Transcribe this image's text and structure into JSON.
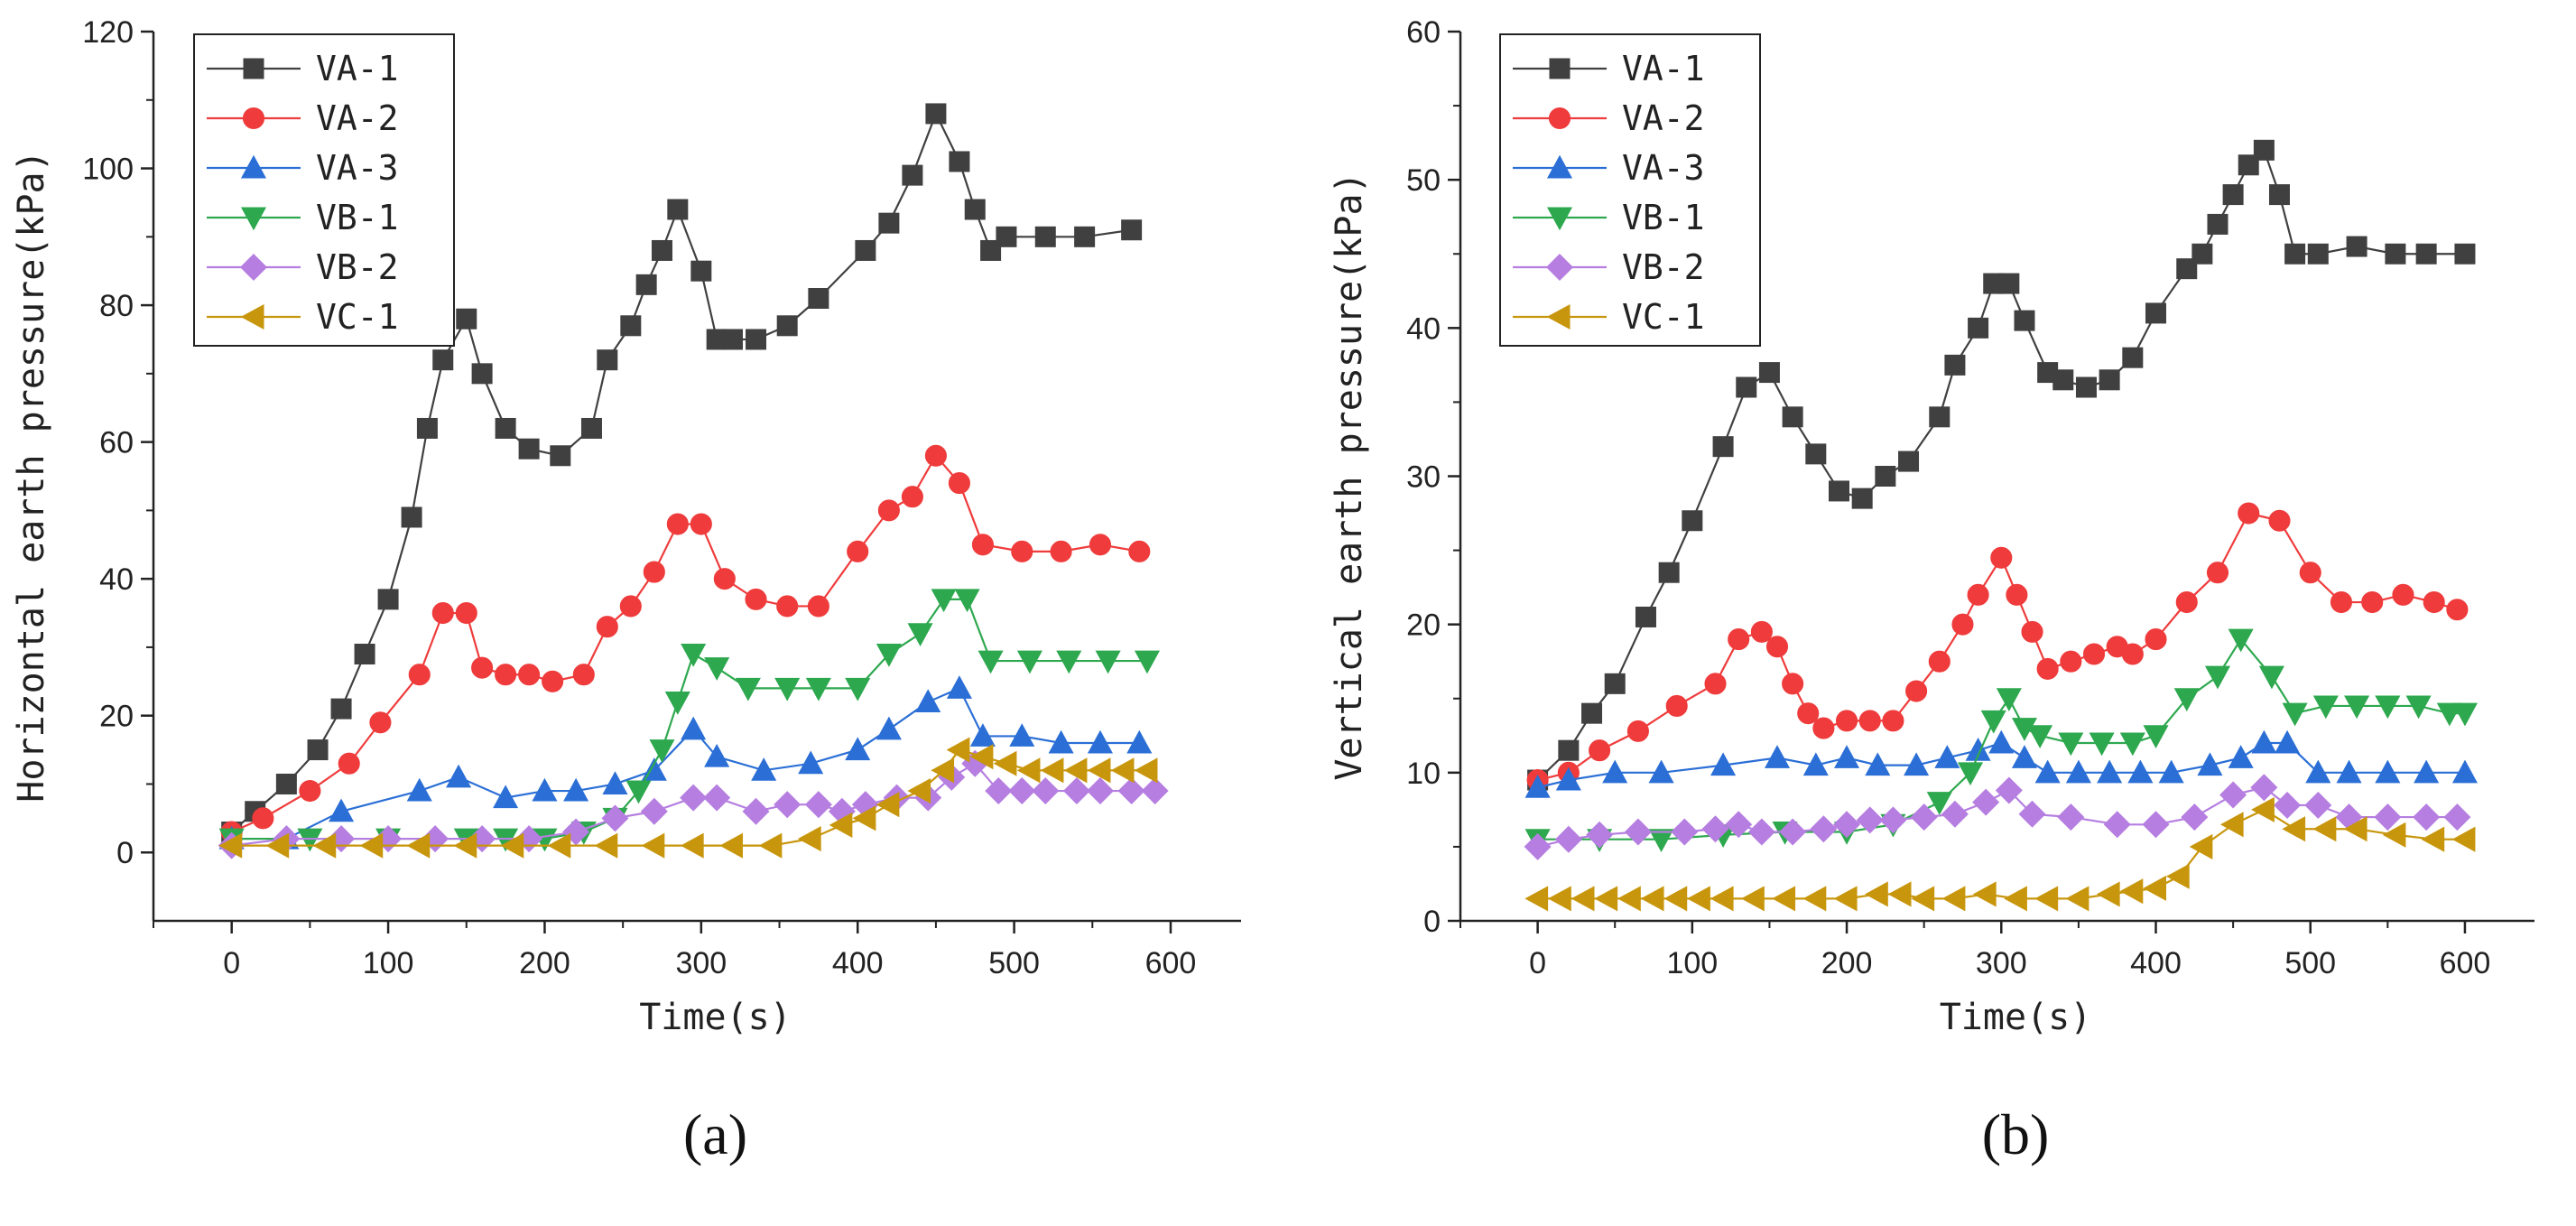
{
  "figure": {
    "panels": [
      "(a)",
      "(b)"
    ]
  },
  "chart_data": [
    {
      "type": "line",
      "panel_label": "(a)",
      "xlabel": "Time(s)",
      "ylabel": "Horizontal earth pressure(kPa)",
      "xlim": [
        -50,
        645
      ],
      "ylim": [
        -10,
        120
      ],
      "xticks": [
        0,
        100,
        200,
        300,
        400,
        500,
        600
      ],
      "yticks": [
        0,
        20,
        40,
        60,
        80,
        100,
        120
      ],
      "legend_position": "top-left",
      "series": [
        {
          "name": "VA-1",
          "color": "#404040",
          "marker": "square",
          "x": [
            0,
            15,
            35,
            55,
            70,
            85,
            100,
            115,
            125,
            135,
            150,
            160,
            175,
            190,
            210,
            230,
            240,
            255,
            265,
            275,
            285,
            300,
            310,
            320,
            335,
            355,
            375,
            405,
            420,
            435,
            450,
            465,
            475,
            485,
            495,
            520,
            545,
            575
          ],
          "y": [
            3,
            6,
            10,
            15,
            21,
            29,
            37,
            49,
            62,
            72,
            78,
            70,
            62,
            59,
            58,
            62,
            72,
            77,
            83,
            88,
            94,
            85,
            75,
            75,
            75,
            77,
            81,
            88,
            92,
            99,
            108,
            101,
            94,
            88,
            90,
            90,
            90,
            91
          ]
        },
        {
          "name": "VA-2",
          "color": "#ef3b3b",
          "marker": "circle",
          "x": [
            0,
            20,
            50,
            75,
            95,
            120,
            135,
            150,
            160,
            175,
            190,
            205,
            225,
            240,
            255,
            270,
            285,
            300,
            315,
            335,
            355,
            375,
            400,
            420,
            435,
            450,
            465,
            480,
            505,
            530,
            555,
            580
          ],
          "y": [
            3,
            5,
            9,
            13,
            19,
            26,
            35,
            35,
            27,
            26,
            26,
            25,
            26,
            33,
            36,
            41,
            48,
            48,
            40,
            37,
            36,
            36,
            44,
            50,
            52,
            58,
            54,
            45,
            44,
            44,
            45,
            44
          ]
        },
        {
          "name": "VA-3",
          "color": "#2b6fd6",
          "marker": "triangle-up",
          "x": [
            0,
            35,
            70,
            120,
            145,
            175,
            200,
            220,
            245,
            270,
            295,
            310,
            340,
            370,
            400,
            420,
            445,
            465,
            480,
            505,
            530,
            555,
            580
          ],
          "y": [
            2,
            2,
            6,
            9,
            11,
            8,
            9,
            9,
            10,
            12,
            18,
            14,
            12,
            13,
            15,
            18,
            22,
            24,
            17,
            17,
            16,
            16,
            16
          ]
        },
        {
          "name": "VB-1",
          "color": "#2ea84f",
          "marker": "triangle-down",
          "x": [
            0,
            50,
            100,
            150,
            175,
            200,
            225,
            245,
            260,
            275,
            285,
            295,
            310,
            330,
            355,
            375,
            400,
            420,
            440,
            455,
            470,
            485,
            510,
            535,
            560,
            585
          ],
          "y": [
            2,
            2,
            2,
            2,
            2,
            2,
            3,
            5,
            9,
            15,
            22,
            29,
            27,
            24,
            24,
            24,
            24,
            29,
            32,
            37,
            37,
            28,
            28,
            28,
            28,
            28
          ]
        },
        {
          "name": "VB-2",
          "color": "#b57ee0",
          "marker": "diamond",
          "x": [
            0,
            35,
            70,
            100,
            130,
            160,
            190,
            220,
            245,
            270,
            295,
            310,
            335,
            355,
            375,
            390,
            405,
            425,
            445,
            460,
            475,
            490,
            505,
            520,
            540,
            555,
            575,
            590
          ],
          "y": [
            1,
            2,
            2,
            2,
            2,
            2,
            2,
            3,
            5,
            6,
            8,
            8,
            6,
            7,
            7,
            6,
            7,
            8,
            8,
            11,
            13,
            9,
            9,
            9,
            9,
            9,
            9,
            9
          ]
        },
        {
          "name": "VC-1",
          "color": "#c8960c",
          "marker": "triangle-left",
          "x": [
            0,
            30,
            60,
            90,
            120,
            150,
            180,
            210,
            240,
            270,
            295,
            320,
            345,
            370,
            390,
            405,
            420,
            440,
            455,
            465,
            480,
            495,
            510,
            525,
            540,
            555,
            570,
            585
          ],
          "y": [
            1,
            1,
            1,
            1,
            1,
            1,
            1,
            1,
            1,
            1,
            1,
            1,
            1,
            2,
            4,
            5,
            7,
            9,
            12,
            15,
            14,
            13,
            12,
            12,
            12,
            12,
            12,
            12
          ]
        }
      ]
    },
    {
      "type": "line",
      "panel_label": "(b)",
      "xlabel": "Time(s)",
      "ylabel": "Vertical earth pressure(kPa)",
      "xlim": [
        -50,
        645
      ],
      "ylim": [
        0,
        60
      ],
      "xticks": [
        0,
        100,
        200,
        300,
        400,
        500,
        600
      ],
      "yticks": [
        0,
        10,
        20,
        30,
        40,
        50,
        60
      ],
      "legend_position": "top-left",
      "series": [
        {
          "name": "VA-1",
          "color": "#404040",
          "marker": "square",
          "x": [
            0,
            20,
            35,
            50,
            70,
            85,
            100,
            120,
            135,
            150,
            165,
            180,
            195,
            210,
            225,
            240,
            260,
            270,
            285,
            295,
            305,
            315,
            330,
            340,
            355,
            370,
            385,
            400,
            420,
            430,
            440,
            450,
            460,
            470,
            480,
            490,
            505,
            530,
            555,
            575,
            600
          ],
          "y": [
            9.5,
            11.5,
            14,
            16,
            20.5,
            23.5,
            27,
            32,
            36,
            37,
            34,
            31.5,
            29,
            28.5,
            30,
            31,
            34,
            37.5,
            40,
            43,
            43,
            40.5,
            37,
            36.5,
            36,
            36.5,
            38,
            41,
            44,
            45,
            47,
            49,
            51,
            52,
            49,
            45,
            45,
            45.5,
            45,
            45,
            45
          ]
        },
        {
          "name": "VA-2",
          "color": "#ef3b3b",
          "marker": "circle",
          "x": [
            0,
            20,
            40,
            65,
            90,
            115,
            130,
            145,
            155,
            165,
            175,
            185,
            200,
            215,
            230,
            245,
            260,
            275,
            285,
            300,
            310,
            320,
            330,
            345,
            360,
            375,
            385,
            400,
            420,
            440,
            460,
            480,
            500,
            520,
            540,
            560,
            580,
            595
          ],
          "y": [
            9.5,
            10,
            11.5,
            12.8,
            14.5,
            16,
            19,
            19.5,
            18.5,
            16,
            14,
            13,
            13.5,
            13.5,
            13.5,
            15.5,
            17.5,
            20,
            22,
            24.5,
            22,
            19.5,
            17,
            17.5,
            18,
            18.5,
            18,
            19,
            21.5,
            23.5,
            27.5,
            27,
            23.5,
            21.5,
            21.5,
            22,
            21.5,
            21
          ]
        },
        {
          "name": "VA-3",
          "color": "#2b6fd6",
          "marker": "triangle-up",
          "x": [
            0,
            20,
            50,
            80,
            120,
            155,
            180,
            200,
            220,
            245,
            265,
            285,
            300,
            315,
            330,
            350,
            370,
            390,
            410,
            435,
            455,
            470,
            485,
            505,
            525,
            550,
            575,
            600
          ],
          "y": [
            9,
            9.5,
            10,
            10,
            10.5,
            11,
            10.5,
            11,
            10.5,
            10.5,
            11,
            11.5,
            12,
            11,
            10,
            10,
            10,
            10,
            10,
            10.5,
            11,
            12,
            12,
            10,
            10,
            10,
            10,
            10
          ]
        },
        {
          "name": "VB-1",
          "color": "#2ea84f",
          "marker": "triangle-down",
          "x": [
            0,
            40,
            80,
            120,
            160,
            200,
            230,
            260,
            280,
            295,
            305,
            315,
            325,
            345,
            365,
            385,
            400,
            420,
            440,
            455,
            475,
            490,
            510,
            530,
            550,
            570,
            590,
            600
          ],
          "y": [
            5.5,
            5.5,
            5.5,
            5.8,
            6,
            6,
            6.5,
            8,
            10,
            13.5,
            15,
            13,
            12.5,
            12,
            12,
            12,
            12.5,
            15,
            16.5,
            19,
            16.5,
            14,
            14.5,
            14.5,
            14.5,
            14.5,
            14,
            14
          ]
        },
        {
          "name": "VB-2",
          "color": "#b57ee0",
          "marker": "diamond",
          "x": [
            0,
            20,
            40,
            65,
            95,
            115,
            130,
            145,
            165,
            185,
            200,
            215,
            230,
            250,
            270,
            290,
            305,
            320,
            345,
            375,
            400,
            425,
            450,
            470,
            485,
            505,
            525,
            550,
            575,
            595
          ],
          "y": [
            5,
            5.5,
            5.8,
            6,
            6,
            6.2,
            6.5,
            6,
            6,
            6.2,
            6.5,
            6.8,
            6.8,
            7,
            7.2,
            8,
            8.8,
            7.2,
            7,
            6.5,
            6.5,
            7,
            8.5,
            9,
            7.8,
            7.8,
            7,
            7,
            7,
            7
          ]
        },
        {
          "name": "VC-1",
          "color": "#c8960c",
          "marker": "triangle-left",
          "x": [
            0,
            15,
            30,
            45,
            60,
            75,
            90,
            105,
            120,
            140,
            160,
            180,
            200,
            220,
            235,
            250,
            270,
            290,
            310,
            330,
            350,
            370,
            385,
            400,
            415,
            430,
            450,
            470,
            490,
            510,
            530,
            555,
            580,
            600
          ],
          "y": [
            1.5,
            1.5,
            1.5,
            1.5,
            1.5,
            1.5,
            1.5,
            1.5,
            1.5,
            1.5,
            1.5,
            1.5,
            1.5,
            1.8,
            1.8,
            1.5,
            1.5,
            1.8,
            1.5,
            1.5,
            1.5,
            1.8,
            2,
            2.2,
            3,
            5,
            6.5,
            7.5,
            6.2,
            6.2,
            6.2,
            5.8,
            5.5,
            5.5
          ]
        }
      ]
    }
  ]
}
